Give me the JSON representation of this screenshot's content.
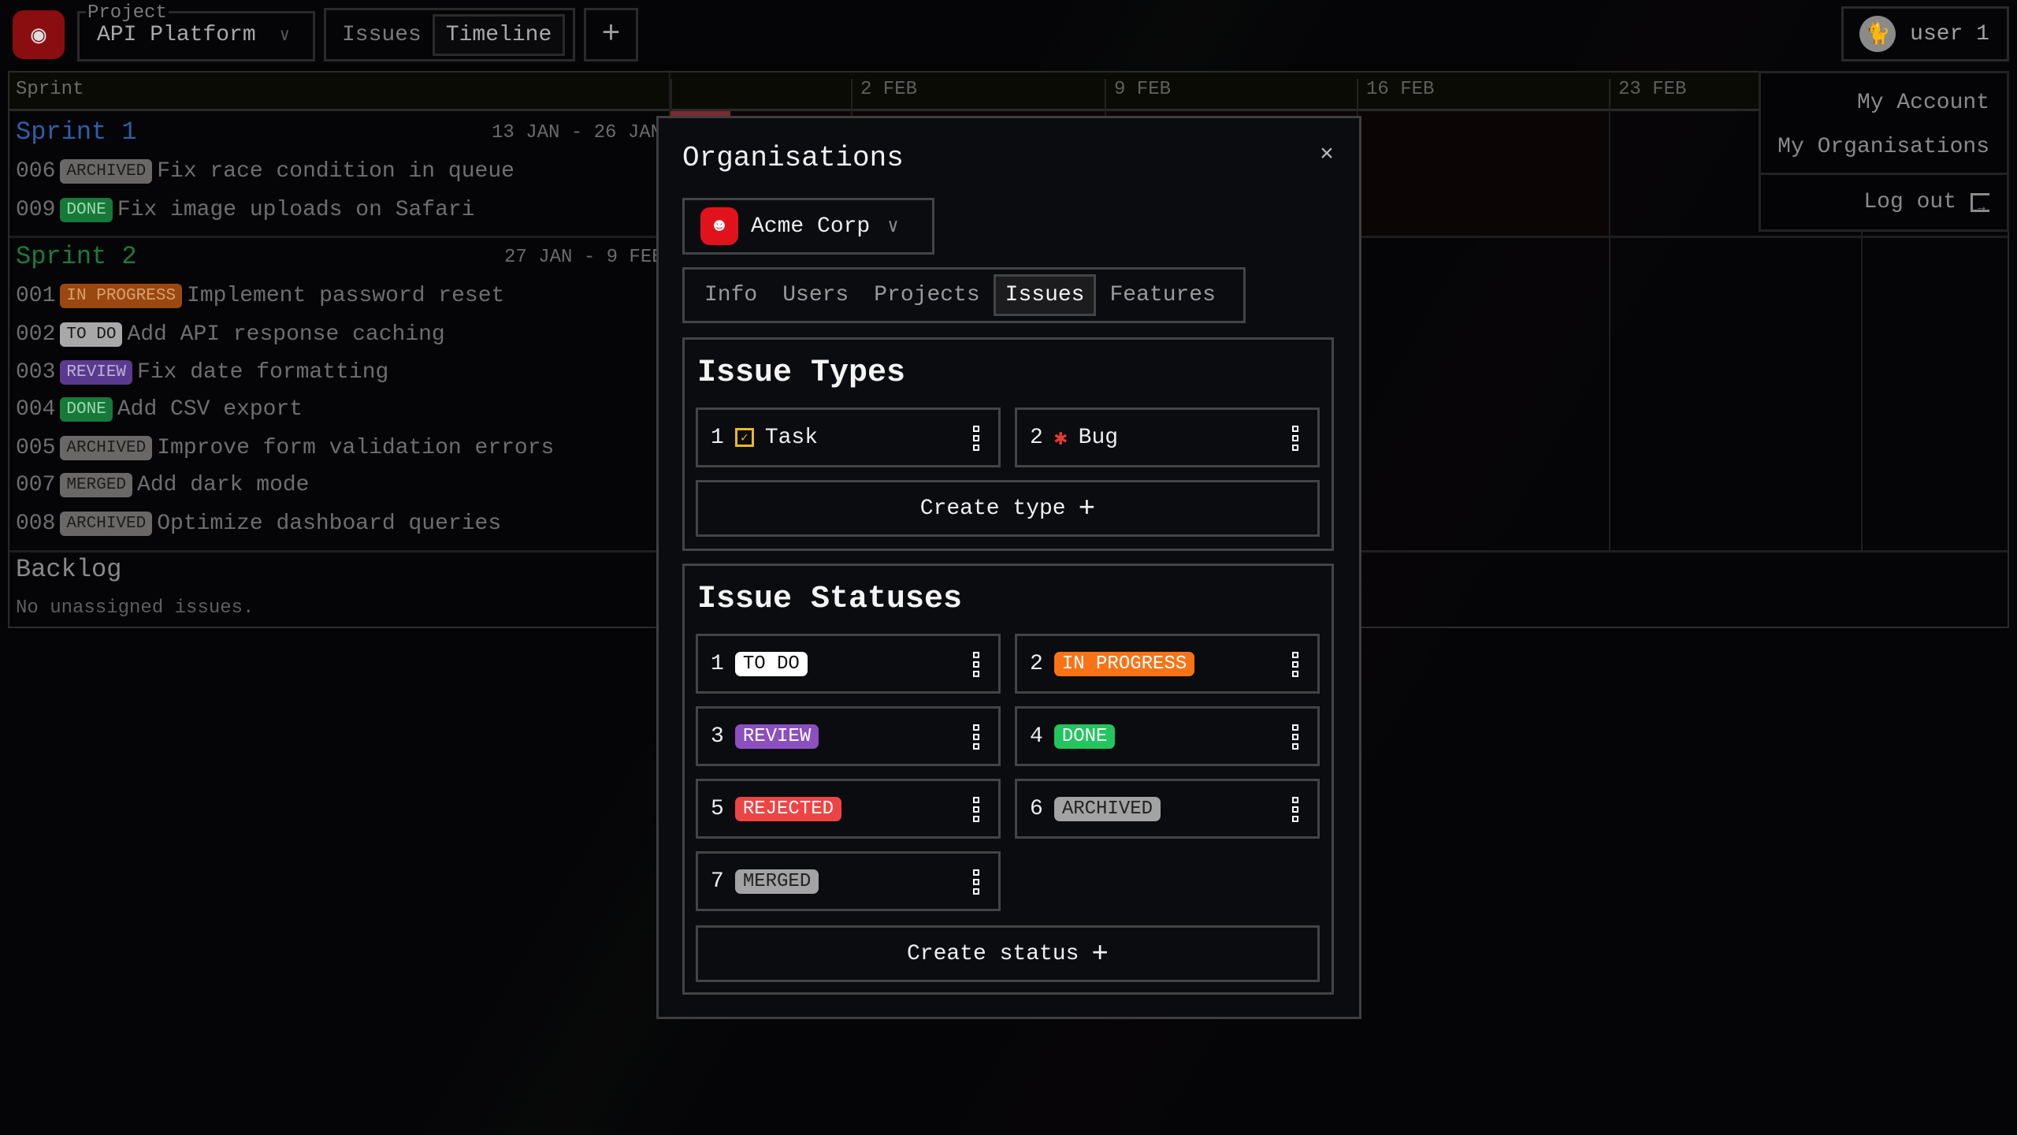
{
  "header": {
    "project_label": "Project",
    "project_name": "API Platform",
    "view_tabs": [
      {
        "label": "Issues",
        "active": false
      },
      {
        "label": "Timeline",
        "active": true
      }
    ],
    "add_view": "+",
    "user_name": "user 1"
  },
  "user_menu": {
    "items": [
      "My Account",
      "My Organisations"
    ],
    "logout": "Log out"
  },
  "board": {
    "sprint_header": "Sprint",
    "timeline_dates": [
      "2 FEB",
      "9 FEB",
      "16 FEB",
      "23 FEB"
    ],
    "sprints": [
      {
        "title": "Sprint 1",
        "dates": "13 JAN - 26 JAN",
        "color": "#2f5fa8",
        "issues": [
          {
            "id": "006",
            "status": "ARCHIVED",
            "title": "Fix race condition in queue"
          },
          {
            "id": "009",
            "status": "DONE",
            "title": "Fix image uploads on Safari"
          }
        ]
      },
      {
        "title": "Sprint 2",
        "dates": "27 JAN - 9 FEB",
        "color": "#1f7a3a",
        "issues": [
          {
            "id": "001",
            "status": "IN PROGRESS",
            "title": "Implement password reset"
          },
          {
            "id": "002",
            "status": "TO DO",
            "title": "Add API response caching"
          },
          {
            "id": "003",
            "status": "REVIEW",
            "title": "Fix date formatting"
          },
          {
            "id": "004",
            "status": "DONE",
            "title": "Add CSV export"
          },
          {
            "id": "005",
            "status": "ARCHIVED",
            "title": "Improve form validation errors"
          },
          {
            "id": "007",
            "status": "MERGED",
            "title": "Add dark mode"
          },
          {
            "id": "008",
            "status": "ARCHIVED",
            "title": "Optimize dashboard queries"
          }
        ]
      }
    ],
    "backlog": {
      "title": "Backlog",
      "empty": "No unassigned issues."
    }
  },
  "dim_status_colors": {
    "TO DO": [
      "#a8a8a8",
      "#1a1a1a"
    ],
    "IN PROGRESS": [
      "#9a4810",
      "#d8a070"
    ],
    "REVIEW": [
      "#5a3a8e",
      "#c0b0d8"
    ],
    "DONE": [
      "#16793a",
      "#a0d8b0"
    ],
    "REJECTED": [
      "#9a2a2a",
      "#e0b0b0"
    ],
    "ARCHIVED": [
      "#6a6767",
      "#1c1c1c"
    ],
    "MERGED": [
      "#6a6767",
      "#1c1c1c"
    ]
  },
  "modal": {
    "title": "Organisations",
    "close": "×",
    "org_name": "Acme Corp",
    "tabs": [
      {
        "label": "Info",
        "active": false
      },
      {
        "label": "Users",
        "active": false
      },
      {
        "label": "Projects",
        "active": false
      },
      {
        "label": "Issues",
        "active": true
      },
      {
        "label": "Features",
        "active": false
      }
    ],
    "issue_types": {
      "title": "Issue Types",
      "items": [
        {
          "order": "1",
          "icon": "task-checkbox-icon",
          "icon_color": "#e8b730",
          "name": "Task"
        },
        {
          "order": "2",
          "icon": "bug-icon",
          "icon_color": "#e53935",
          "name": "Bug"
        }
      ],
      "create_label": "Create type"
    },
    "issue_statuses": {
      "title": "Issue Statuses",
      "items": [
        {
          "order": "1",
          "name": "TO DO",
          "bg": "#ffffff",
          "fg": "#111111"
        },
        {
          "order": "2",
          "name": "IN PROGRESS",
          "bg": "#f97316",
          "fg": "#ffffff"
        },
        {
          "order": "3",
          "name": "REVIEW",
          "bg": "#8b4fc0",
          "fg": "#ffffff"
        },
        {
          "order": "4",
          "name": "DONE",
          "bg": "#22c55e",
          "fg": "#ffffff"
        },
        {
          "order": "5",
          "name": "REJECTED",
          "bg": "#ef4444",
          "fg": "#ffffff"
        },
        {
          "order": "6",
          "name": "ARCHIVED",
          "bg": "#a3a3a3",
          "fg": "#222222"
        },
        {
          "order": "7",
          "name": "MERGED",
          "bg": "#a3a3a3",
          "fg": "#222222"
        }
      ],
      "create_label": "Create status"
    }
  }
}
